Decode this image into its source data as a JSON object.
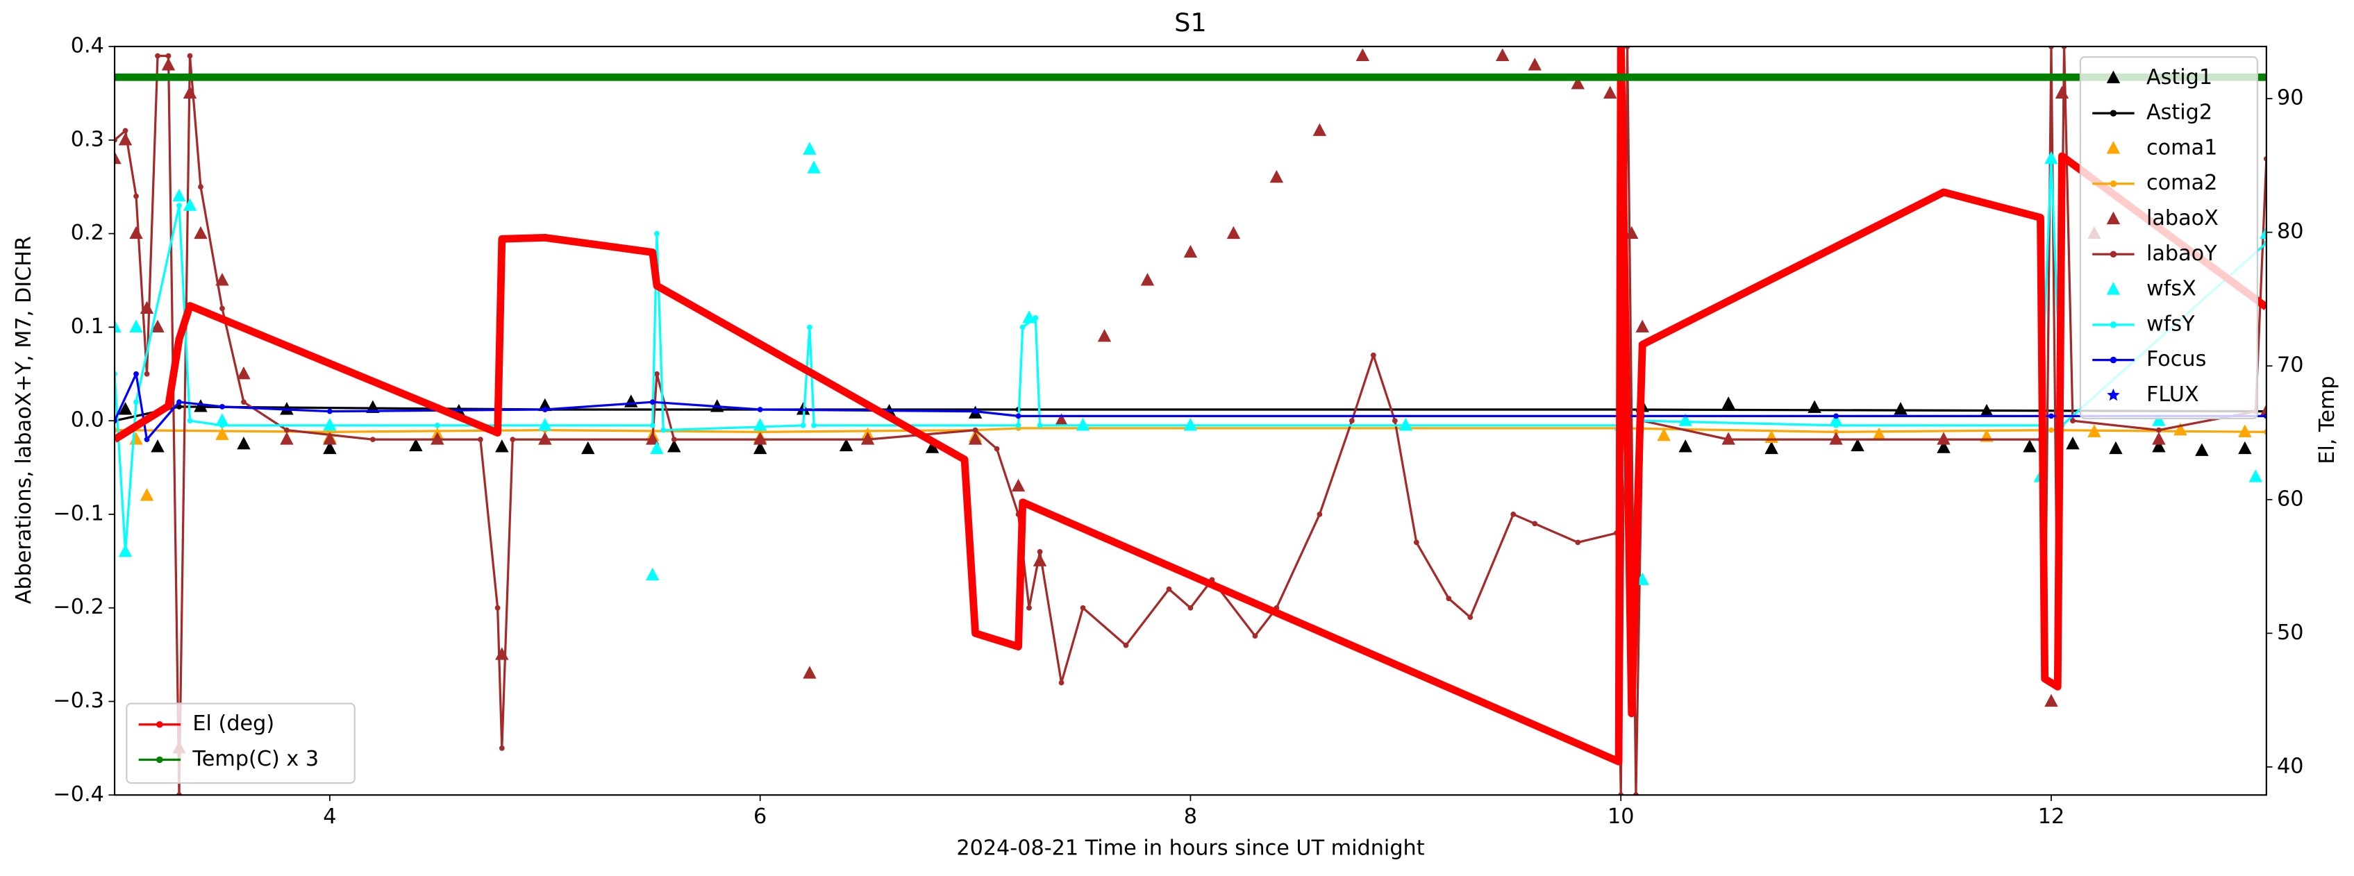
{
  "chart_data": {
    "type": "line",
    "title": "S1",
    "xlabel": "2024-08-21  Time in hours since UT midnight",
    "ylabel": "Abberations, labaoX+Y, M7, DICHR",
    "y2label": "El, Temp",
    "xlim": [
      3,
      13
    ],
    "xticks": [
      4,
      6,
      8,
      10,
      12
    ],
    "ylim": [
      -0.4,
      0.4
    ],
    "yticks": [
      {
        "value": -0.4,
        "label": "−0.4"
      },
      {
        "value": -0.3,
        "label": "−0.3"
      },
      {
        "value": -0.2,
        "label": "−0.2"
      },
      {
        "value": -0.1,
        "label": "−0.1"
      },
      {
        "value": 0,
        "label": "0.0"
      },
      0.1,
      0.2,
      0.3,
      0.4
    ],
    "y2lim": [
      37.9,
      93.9
    ],
    "y2ticks": [
      40,
      50,
      60,
      70,
      80,
      90
    ],
    "legend_loc": "upper right",
    "y2_legend_loc": "lower left",
    "series": [
      {
        "name": "Astig1",
        "color": "#000000",
        "style": "triangles",
        "x": [
          3.05,
          3.2,
          3.4,
          3.6,
          3.8,
          4.0,
          4.2,
          4.4,
          4.6,
          4.8,
          5.0,
          5.2,
          5.4,
          5.6,
          5.8,
          6.0,
          6.2,
          6.4,
          6.6,
          6.8,
          7.0,
          10.1,
          10.3,
          10.5,
          10.7,
          10.9,
          11.1,
          11.3,
          11.5,
          11.7,
          11.9,
          12.1,
          12.3,
          12.5,
          12.7,
          12.9
        ],
        "values": [
          0.012,
          -0.028,
          0.015,
          -0.025,
          0.012,
          -0.03,
          0.014,
          -0.027,
          0.01,
          -0.028,
          0.016,
          -0.03,
          0.02,
          -0.028,
          0.015,
          -0.03,
          0.012,
          -0.027,
          0.01,
          -0.029,
          0.008,
          0.015,
          -0.028,
          0.018,
          -0.03,
          0.014,
          -0.027,
          0.012,
          -0.029,
          0.01,
          -0.028,
          -0.025,
          -0.03,
          -0.028,
          -0.032,
          -0.03
        ]
      },
      {
        "name": "Astig2",
        "color": "#000000",
        "style": "line-dots",
        "x": [
          3.0,
          3.3,
          5.0,
          7.2,
          10.0,
          13.0
        ],
        "values": [
          0.0,
          0.015,
          0.012,
          0.012,
          0.012,
          0.01
        ]
      },
      {
        "name": "coma1",
        "color": "#ffa500",
        "style": "triangles",
        "x": [
          3.1,
          3.15,
          3.5,
          4.0,
          4.5,
          5.0,
          5.5,
          6.0,
          6.5,
          7.0,
          10.2,
          10.7,
          11.2,
          11.7,
          12.2,
          12.6,
          12.9
        ],
        "values": [
          -0.02,
          -0.08,
          -0.015,
          -0.018,
          -0.015,
          -0.02,
          -0.016,
          -0.018,
          -0.015,
          -0.017,
          -0.016,
          -0.018,
          -0.015,
          -0.017,
          -0.012,
          -0.01,
          -0.012
        ]
      },
      {
        "name": "coma2",
        "color": "#ffa500",
        "style": "line-dots",
        "x": [
          3.0,
          4.0,
          5.0,
          6.0,
          7.0,
          7.2,
          10.0,
          11.0,
          12.0,
          13.0
        ],
        "values": [
          -0.01,
          -0.012,
          -0.01,
          -0.012,
          -0.01,
          -0.008,
          -0.008,
          -0.012,
          -0.01,
          -0.012
        ]
      },
      {
        "name": "labaoX",
        "color": "#a52a2a",
        "style": "triangles",
        "x": [
          3.0,
          3.05,
          3.1,
          3.15,
          3.2,
          3.25,
          3.3,
          3.35,
          3.4,
          3.5,
          3.6,
          3.8,
          4.0,
          4.5,
          4.8,
          5.0,
          5.5,
          6.0,
          6.23,
          6.5,
          7.0,
          7.2,
          7.3,
          7.4,
          7.6,
          7.8,
          8.0,
          8.2,
          8.4,
          8.6,
          8.8,
          9.45,
          9.6,
          9.8,
          9.95,
          10.05,
          10.1,
          10.5,
          11.0,
          11.5,
          12.0,
          12.05,
          12.2,
          12.5,
          13.0
        ],
        "values": [
          0.28,
          0.3,
          0.2,
          0.12,
          0.1,
          0.38,
          -0.35,
          0.35,
          0.2,
          0.15,
          0.05,
          -0.02,
          -0.02,
          -0.02,
          -0.25,
          -0.02,
          -0.02,
          -0.02,
          -0.27,
          -0.02,
          -0.02,
          -0.07,
          -0.15,
          0.0,
          0.09,
          0.15,
          0.18,
          0.2,
          0.26,
          0.31,
          0.39,
          0.39,
          0.38,
          0.36,
          0.35,
          0.2,
          0.1,
          -0.02,
          -0.02,
          -0.02,
          -0.3,
          0.35,
          0.2,
          -0.02,
          0.01
        ]
      },
      {
        "name": "labaoY",
        "color": "#a52a2a",
        "style": "line-dots",
        "x": [
          3.0,
          3.05,
          3.1,
          3.15,
          3.2,
          3.25,
          3.3,
          3.35,
          3.4,
          3.5,
          3.6,
          3.8,
          4.2,
          4.7,
          4.78,
          4.8,
          4.85,
          5.5,
          5.52,
          5.6,
          6.5,
          7.0,
          7.1,
          7.2,
          7.25,
          7.3,
          7.4,
          7.5,
          7.7,
          7.9,
          8.0,
          8.1,
          8.3,
          8.4,
          8.6,
          8.75,
          8.85,
          8.95,
          9.05,
          9.2,
          9.3,
          9.5,
          9.6,
          9.8,
          9.98,
          10.0,
          10.03,
          10.07,
          10.1,
          10.5,
          11.0,
          11.5,
          11.95,
          11.97,
          12.0,
          12.03,
          12.06,
          12.1,
          12.5,
          12.95,
          13.0
        ],
        "values": [
          0.3,
          0.31,
          0.24,
          0.05,
          0.39,
          0.39,
          -0.4,
          0.39,
          0.25,
          0.12,
          0.02,
          -0.01,
          -0.02,
          -0.02,
          -0.2,
          -0.35,
          -0.02,
          -0.02,
          0.05,
          -0.02,
          -0.02,
          -0.01,
          -0.03,
          -0.1,
          -0.2,
          -0.14,
          -0.28,
          -0.2,
          -0.24,
          -0.18,
          -0.2,
          -0.17,
          -0.23,
          -0.2,
          -0.1,
          0.0,
          0.07,
          0.0,
          -0.13,
          -0.19,
          -0.21,
          -0.1,
          -0.11,
          -0.13,
          -0.12,
          -0.4,
          0.4,
          -0.4,
          0.0,
          -0.02,
          -0.02,
          -0.02,
          -0.02,
          -0.27,
          0.4,
          -0.25,
          0.4,
          0.0,
          -0.01,
          0.01,
          0.28
        ]
      },
      {
        "name": "wfsX",
        "color": "#00ffff",
        "style": "triangles",
        "x": [
          3.0,
          3.05,
          3.1,
          3.3,
          3.35,
          3.5,
          4.0,
          5.0,
          5.5,
          5.52,
          6.0,
          6.23,
          6.25,
          7.25,
          7.5,
          8.0,
          9.0,
          10.0,
          10.1,
          10.3,
          11.0,
          11.95,
          12.0,
          12.5,
          12.95,
          13.0
        ],
        "values": [
          0.1,
          -0.14,
          0.1,
          0.24,
          0.23,
          0.0,
          -0.005,
          -0.005,
          -0.165,
          -0.03,
          -0.005,
          0.29,
          0.27,
          0.11,
          -0.005,
          -0.005,
          -0.005,
          -0.005,
          -0.17,
          0.0,
          0.0,
          -0.06,
          0.28,
          0.0,
          -0.06,
          0.2
        ]
      },
      {
        "name": "wfsY",
        "color": "#00ffff",
        "style": "line-dots",
        "x": [
          3.0,
          3.05,
          3.1,
          3.3,
          3.35,
          3.5,
          4.5,
          5.5,
          5.52,
          5.55,
          6.2,
          6.23,
          6.25,
          7.2,
          7.22,
          7.28,
          7.3,
          9.0,
          10.0,
          10.05,
          10.1,
          11.0,
          11.95,
          12.0,
          12.05,
          13.0
        ],
        "values": [
          0.05,
          -0.14,
          0.02,
          0.23,
          0.0,
          -0.005,
          -0.005,
          -0.005,
          0.2,
          -0.01,
          -0.005,
          0.1,
          -0.005,
          -0.005,
          0.1,
          0.11,
          -0.005,
          -0.005,
          -0.005,
          -0.17,
          0.0,
          -0.005,
          -0.005,
          0.28,
          -0.005,
          0.19
        ]
      },
      {
        "name": "Focus",
        "color": "#0000ff",
        "style": "line-dots",
        "x": [
          3.0,
          3.1,
          3.15,
          3.3,
          3.5,
          4.0,
          5.0,
          5.5,
          6.0,
          7.0,
          7.2,
          10.0,
          10.1,
          11.0,
          12.0,
          13.0
        ],
        "values": [
          0.0,
          0.05,
          -0.02,
          0.02,
          0.015,
          0.01,
          0.012,
          0.02,
          0.012,
          0.01,
          0.005,
          0.005,
          0.005,
          0.005,
          0.005,
          0.005
        ]
      },
      {
        "name": "FLUX",
        "color": "#0000ff",
        "style": "stars",
        "x": [],
        "values": []
      },
      {
        "name": "El (deg)",
        "color": "#ff0000",
        "style": "thick-line",
        "axis": "y2",
        "x": [
          3.0,
          3.25,
          3.3,
          3.35,
          4.78,
          4.8,
          5.0,
          5.5,
          5.52,
          6.95,
          7.0,
          7.2,
          7.22,
          9.99,
          10.0,
          10.05,
          10.1,
          11.5,
          11.95,
          11.97,
          12.03,
          12.05,
          13.0
        ],
        "values": [
          64.5,
          67.0,
          72.0,
          74.5,
          65.0,
          79.5,
          79.6,
          78.5,
          76.0,
          63.0,
          50.0,
          49.0,
          59.8,
          40.4,
          95.0,
          44.0,
          71.6,
          83.0,
          81.1,
          46.6,
          46.0,
          85.7,
          74.4
        ]
      },
      {
        "name": "Temp(C) x 3",
        "color": "#008000",
        "style": "thick-line",
        "axis": "y2",
        "x": [
          3.0,
          5.0,
          7.0,
          9.0,
          11.0,
          13.0
        ],
        "values": [
          91.6,
          91.6,
          91.6,
          91.6,
          91.6,
          91.6
        ]
      }
    ]
  }
}
